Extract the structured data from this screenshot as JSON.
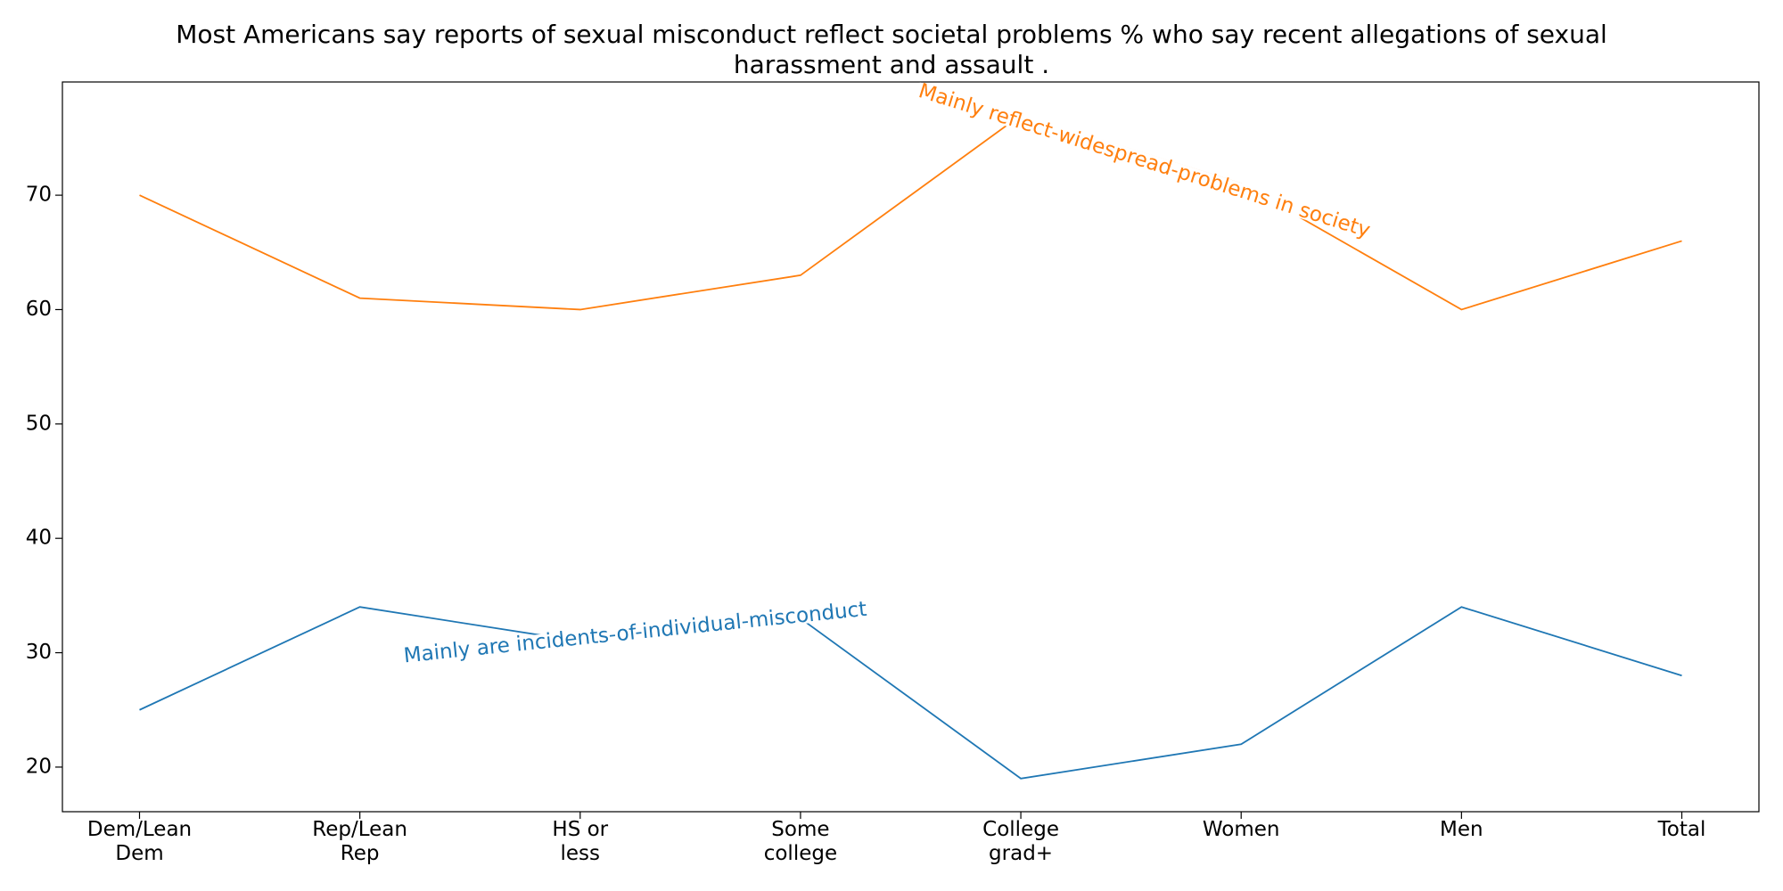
{
  "chart_data": {
    "type": "line",
    "title": "Most Americans say reports of sexual misconduct reflect societal problems % who say recent allegations of sexual\nharassment and assault .",
    "categories": [
      "Dem/Lean\nDem",
      "Rep/Lean\nRep",
      "HS or\nless",
      "Some\ncollege",
      "College\ngrad+",
      "Women",
      "Men",
      "Total"
    ],
    "series": [
      {
        "name": "Mainly are incidents-of-individual-misconduct",
        "color": "#1f77b4",
        "values": [
          25,
          34,
          31,
          33,
          19,
          22,
          34,
          28
        ]
      },
      {
        "name": "Mainly reflect-widespread-problems in society",
        "color": "#ff7f0e",
        "values": [
          70,
          61,
          60,
          63,
          77,
          71,
          60,
          66
        ]
      }
    ],
    "ylim": [
      16.1,
      79.9
    ],
    "yticks": [
      20,
      30,
      40,
      50,
      60,
      70
    ],
    "grid": false
  }
}
